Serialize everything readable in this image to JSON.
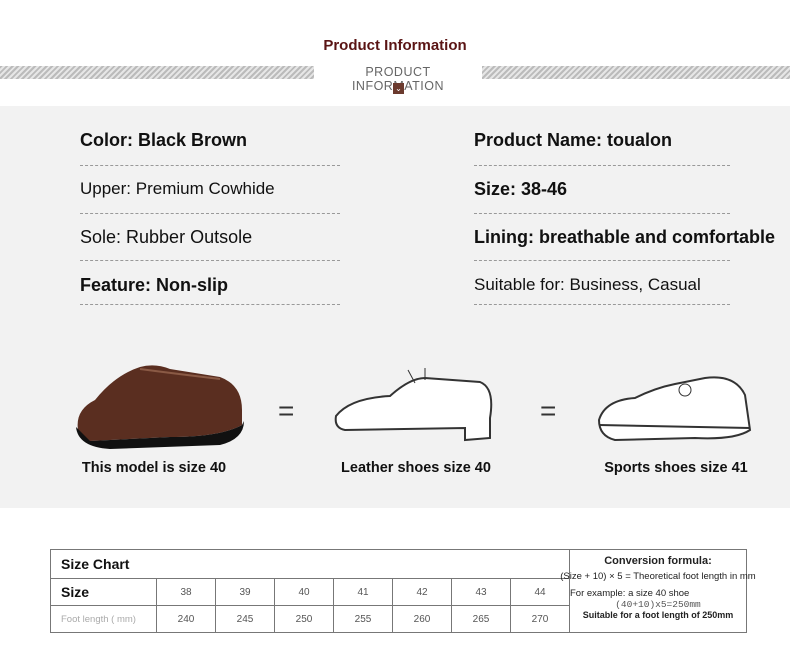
{
  "header": {
    "title": "Product Information",
    "subtitle": "PRODUCT INFORMATION"
  },
  "attributes_left": [
    {
      "text": "Color: Black Brown"
    },
    {
      "text": "Upper: Premium Cowhide"
    },
    {
      "text": "Sole: Rubber Outsole"
    },
    {
      "text": "Feature: Non-slip"
    }
  ],
  "attributes_right": [
    {
      "text": "Product Name: toualon"
    },
    {
      "text": "Size: 38-46"
    },
    {
      "text": "Lining: breathable and comfortable"
    },
    {
      "text": "Suitable for: Business, Casual"
    }
  ],
  "comparison": {
    "equals": "=",
    "items": [
      {
        "caption": "This model is size 40",
        "icon": "brown-loafer-photo"
      },
      {
        "caption": "Leather shoes size 40",
        "icon": "oxford-shoe-outline"
      },
      {
        "caption": "Sports shoes size 41",
        "icon": "sneaker-outline"
      }
    ]
  },
  "size_chart": {
    "title": "Size Chart",
    "size_label": "Size",
    "length_label": "Foot length ( mm)",
    "sizes": [
      "38",
      "39",
      "40",
      "41",
      "42",
      "43",
      "44"
    ],
    "lengths": [
      "240",
      "245",
      "250",
      "255",
      "260",
      "265",
      "270"
    ],
    "formula_title": "Conversion formula:",
    "formula": "(Size + 10) × 5 = Theoretical foot length in mm",
    "example": "For example: a size 40 shoe",
    "example_calc": "(40+10)x5=250mm",
    "example_result": "Suitable for a foot length of 250mm"
  }
}
